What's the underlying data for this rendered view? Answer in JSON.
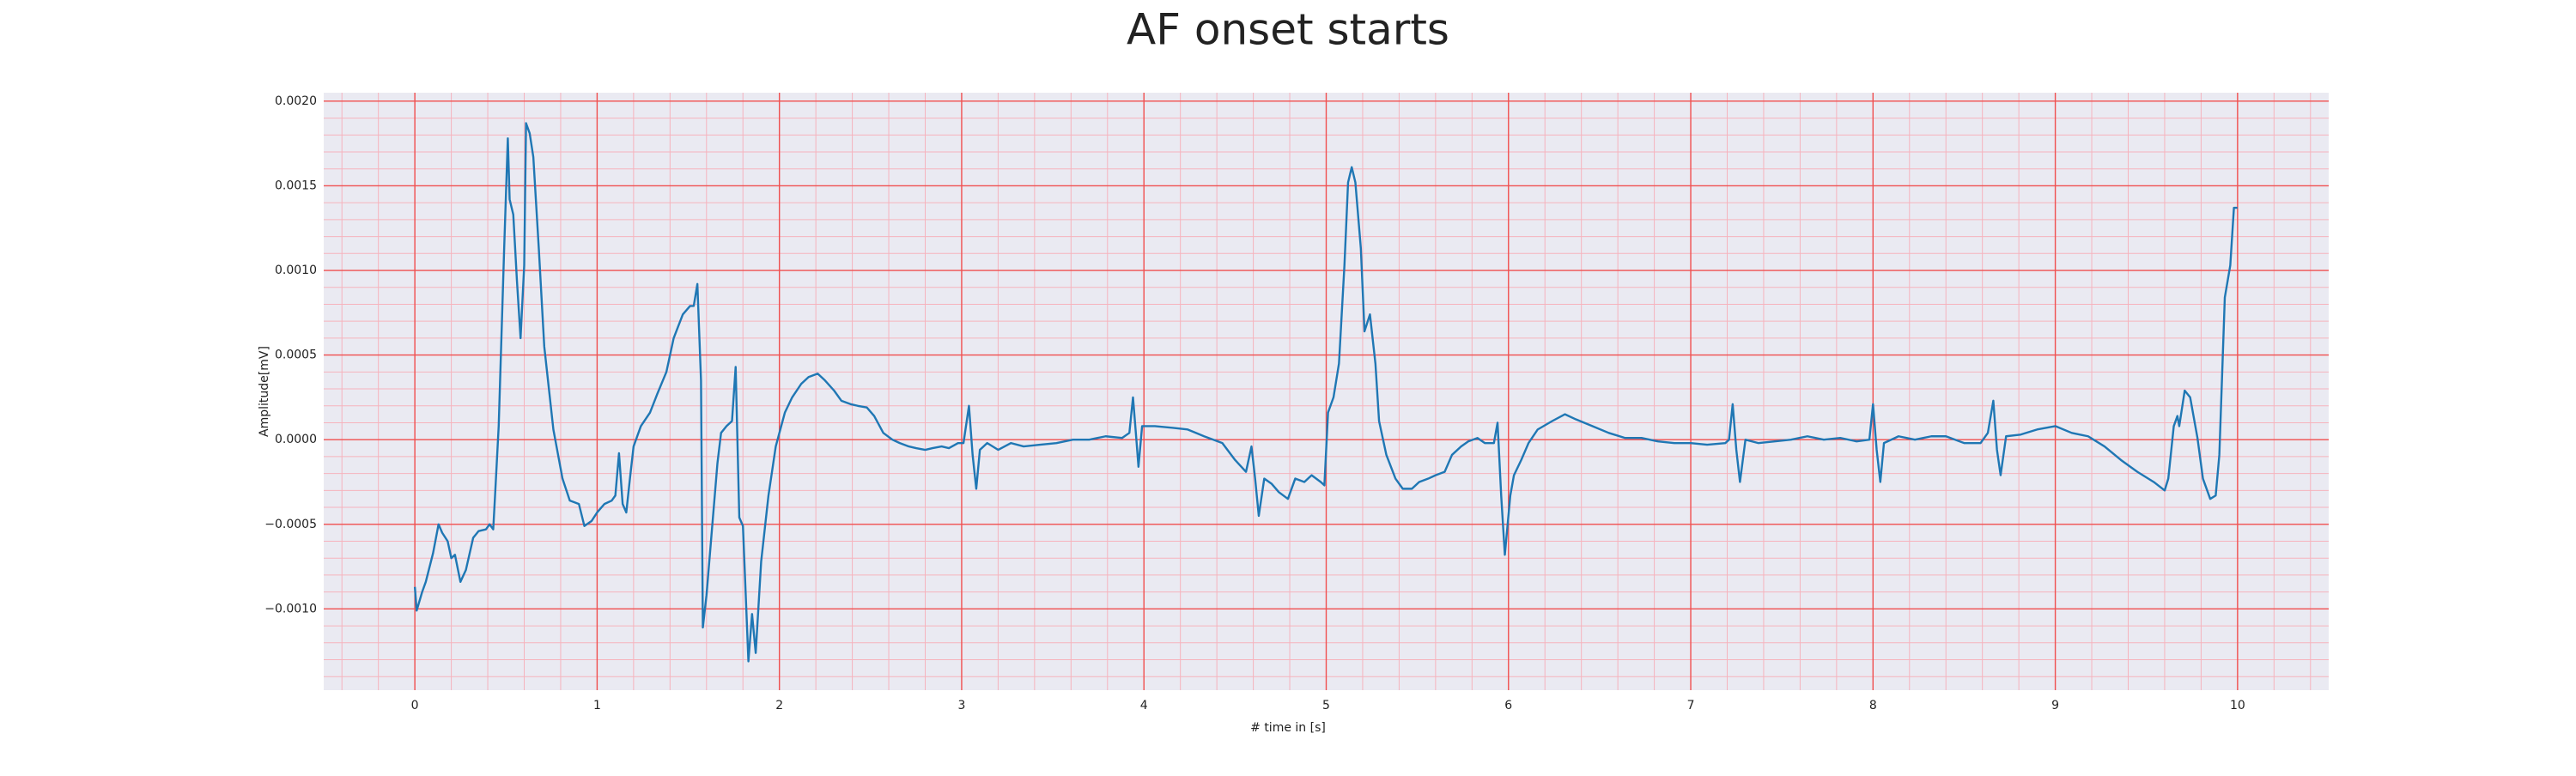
{
  "chart_data": {
    "type": "line",
    "title": "AF onset starts",
    "xlabel": "# time in [s]",
    "ylabel": "Amplitude[mV]",
    "color": "#1f77b4",
    "grid": true,
    "minor_grid": true,
    "xlim": [
      -0.5,
      10.5
    ],
    "ylim": [
      -0.00148,
      0.00205
    ],
    "xticks": [
      0,
      1,
      2,
      3,
      4,
      5,
      6,
      7,
      8,
      9,
      10
    ],
    "yticks": [
      {
        "value": -0.001,
        "label": "−0.0010"
      },
      {
        "value": -0.0005,
        "label": "−0.0005"
      },
      {
        "value": 0,
        "label": "0.0000"
      },
      {
        "value": 0.0005,
        "label": "0.0005"
      },
      {
        "value": 0.001,
        "label": "0.0010"
      },
      {
        "value": 0.0015,
        "label": "0.0015"
      },
      {
        "value": 0.002,
        "label": "0.0020"
      }
    ],
    "x": [
      0,
      0.01,
      0.04,
      0.06,
      0.1,
      0.13,
      0.15,
      0.18,
      0.2,
      0.22,
      0.25,
      0.28,
      0.32,
      0.35,
      0.39,
      0.41,
      0.43,
      0.44,
      0.46,
      0.49,
      0.51,
      0.52,
      0.54,
      0.56,
      0.58,
      0.6,
      0.61,
      0.63,
      0.65,
      0.68,
      0.71,
      0.76,
      0.81,
      0.85,
      0.9,
      0.93,
      0.97,
      1.0,
      1.04,
      1.08,
      1.1,
      1.12,
      1.14,
      1.16,
      1.18,
      1.2,
      1.24,
      1.29,
      1.33,
      1.38,
      1.42,
      1.47,
      1.51,
      1.53,
      1.55,
      1.57,
      1.58,
      1.6,
      1.63,
      1.66,
      1.68,
      1.71,
      1.74,
      1.76,
      1.78,
      1.8,
      1.83,
      1.85,
      1.87,
      1.9,
      1.94,
      1.98,
      2.03,
      2.07,
      2.12,
      2.16,
      2.21,
      2.25,
      2.3,
      2.34,
      2.39,
      2.43,
      2.48,
      2.52,
      2.57,
      2.62,
      2.66,
      2.71,
      2.75,
      2.8,
      2.84,
      2.89,
      2.93,
      2.98,
      3.01,
      3.04,
      3.06,
      3.08,
      3.1,
      3.14,
      3.2,
      3.27,
      3.34,
      3.43,
      3.52,
      3.61,
      3.7,
      3.79,
      3.88,
      3.92,
      3.94,
      3.96,
      3.97,
      3.99,
      4.06,
      4.16,
      4.24,
      4.33,
      4.43,
      4.5,
      4.56,
      4.59,
      4.61,
      4.63,
      4.66,
      4.7,
      4.74,
      4.79,
      4.83,
      4.88,
      4.92,
      4.97,
      4.99,
      5.01,
      5.04,
      5.07,
      5.1,
      5.12,
      5.14,
      5.16,
      5.19,
      5.21,
      5.24,
      5.27,
      5.29,
      5.33,
      5.38,
      5.42,
      5.47,
      5.51,
      5.56,
      5.6,
      5.65,
      5.69,
      5.74,
      5.78,
      5.83,
      5.87,
      5.92,
      5.94,
      5.96,
      5.98,
      6.01,
      6.03,
      6.07,
      6.11,
      6.16,
      6.24,
      6.31,
      6.37,
      6.46,
      6.55,
      6.64,
      6.73,
      6.82,
      6.91,
      7.0,
      7.09,
      7.19,
      7.21,
      7.23,
      7.25,
      7.27,
      7.3,
      7.37,
      7.46,
      7.55,
      7.64,
      7.73,
      7.82,
      7.91,
      7.98,
      8.0,
      8.02,
      8.04,
      8.06,
      8.14,
      8.23,
      8.32,
      8.4,
      8.5,
      8.59,
      8.63,
      8.66,
      8.68,
      8.7,
      8.73,
      8.81,
      8.9,
      9.0,
      9.09,
      9.18,
      9.27,
      9.36,
      9.45,
      9.54,
      9.6,
      9.62,
      9.65,
      9.67,
      9.68,
      9.71,
      9.74,
      9.78,
      9.81,
      9.85,
      9.88,
      9.9,
      9.93,
      9.96,
      9.98,
      10.0
    ],
    "values": [
      -0.00087,
      -0.00101,
      -0.0009,
      -0.00084,
      -0.00067,
      -0.0005,
      -0.00055,
      -0.0006,
      -0.0007,
      -0.00068,
      -0.00084,
      -0.00077,
      -0.00058,
      -0.00054,
      -0.00053,
      -0.0005,
      -0.00053,
      -0.00033,
      8e-05,
      0.00113,
      0.00178,
      0.00142,
      0.00133,
      0.00094,
      0.0006,
      0.00103,
      0.00187,
      0.00181,
      0.00167,
      0.00113,
      0.00055,
      6e-05,
      -0.00023,
      -0.00036,
      -0.00038,
      -0.00051,
      -0.00048,
      -0.00043,
      -0.00038,
      -0.00036,
      -0.00033,
      -8e-05,
      -0.00038,
      -0.00043,
      -0.00023,
      -4e-05,
      8e-05,
      0.00016,
      0.00027,
      0.0004,
      0.0006,
      0.00074,
      0.00079,
      0.00079,
      0.00092,
      0.00035,
      -0.00111,
      -0.00092,
      -0.00053,
      -0.00014,
      4e-05,
      8e-05,
      0.00011,
      0.00043,
      -0.00046,
      -0.00051,
      -0.00131,
      -0.00103,
      -0.00126,
      -0.00072,
      -0.00033,
      -4e-05,
      0.00016,
      0.00025,
      0.00033,
      0.00037,
      0.00039,
      0.00035,
      0.00029,
      0.00023,
      0.00021,
      0.0002,
      0.00019,
      0.00014,
      4e-05,
      0,
      -2e-05,
      -4e-05,
      -5e-05,
      -6e-05,
      -5e-05,
      -4e-05,
      -5e-05,
      -2e-05,
      -2e-05,
      0.0002,
      -9e-05,
      -0.00029,
      -6e-05,
      -2e-05,
      -6e-05,
      -2e-05,
      -4e-05,
      -3e-05,
      -2e-05,
      0,
      0,
      2e-05,
      1e-05,
      4e-05,
      0.00025,
      -2e-05,
      -0.00016,
      8e-05,
      8e-05,
      7e-05,
      6e-05,
      2e-05,
      -2e-05,
      -0.00012,
      -0.00019,
      -4e-05,
      -0.00023,
      -0.00045,
      -0.00023,
      -0.00026,
      -0.00031,
      -0.00035,
      -0.00023,
      -0.00025,
      -0.00021,
      -0.00025,
      -0.00027,
      0.00016,
      0.00025,
      0.00045,
      0.00103,
      0.00152,
      0.00161,
      0.00152,
      0.00113,
      0.00064,
      0.00074,
      0.00045,
      0.00011,
      -9e-05,
      -0.00023,
      -0.00029,
      -0.00029,
      -0.00025,
      -0.00023,
      -0.00021,
      -0.00019,
      -9e-05,
      -4e-05,
      -1e-05,
      1e-05,
      -2e-05,
      -2e-05,
      0.0001,
      -0.00033,
      -0.00068,
      -0.00033,
      -0.00021,
      -0.00012,
      -2e-05,
      6e-05,
      0.00011,
      0.00015,
      0.00012,
      8e-05,
      4e-05,
      1e-05,
      1e-05,
      -1e-05,
      -2e-05,
      -2e-05,
      -3e-05,
      -2e-05,
      0,
      0.00021,
      -6e-05,
      -0.00025,
      0,
      -2e-05,
      -1e-05,
      0,
      2e-05,
      0,
      1e-05,
      -1e-05,
      0,
      0.00021,
      -6e-05,
      -0.00025,
      -2e-05,
      2e-05,
      0,
      2e-05,
      2e-05,
      -2e-05,
      -2e-05,
      4e-05,
      0.00023,
      -6e-05,
      -0.00021,
      2e-05,
      3e-05,
      6e-05,
      8e-05,
      4e-05,
      2e-05,
      -4e-05,
      -0.00012,
      -0.00019,
      -0.00025,
      -0.0003,
      -0.00023,
      8e-05,
      0.00014,
      8e-05,
      0.00029,
      0.00025,
      1e-05,
      -0.00023,
      -0.00035,
      -0.00033,
      -9e-05,
      0.00084,
      0.00103,
      0.00137,
      0.00137
    ]
  }
}
